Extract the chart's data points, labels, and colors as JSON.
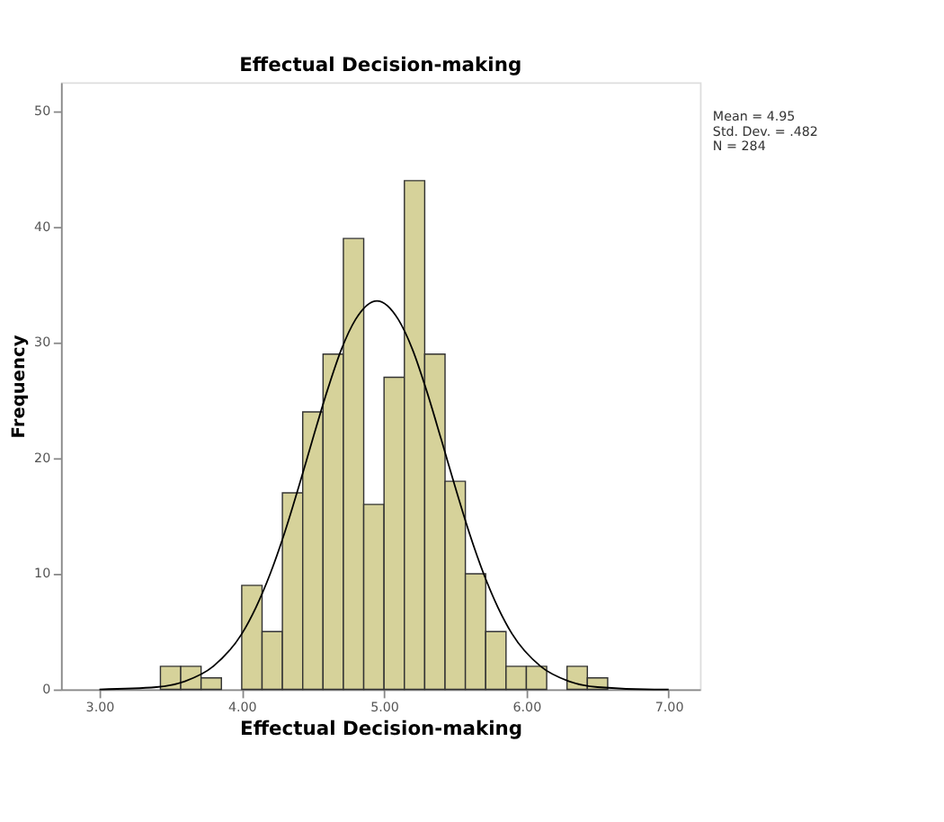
{
  "chart_data": {
    "type": "histogram",
    "title": "Effectual Decision-making",
    "xlabel": "Effectual Decision-making",
    "ylabel": "Frequency",
    "bins": [
      3.4286,
      3.5714,
      3.7143,
      3.8571,
      4.0,
      4.1429,
      4.2857,
      4.4286,
      4.5714,
      4.7143,
      4.8571,
      5.0,
      5.1429,
      5.2857,
      5.4286,
      5.5714,
      5.7143,
      5.8571,
      6.0,
      6.1429,
      6.2857,
      6.4286,
      6.5714
    ],
    "values": [
      2,
      2,
      1,
      0,
      9,
      5,
      17,
      24,
      29,
      39,
      16,
      27,
      44,
      29,
      18,
      10,
      5,
      2,
      2,
      0,
      2,
      1
    ],
    "color": "#d6d29a",
    "series": [
      {
        "type": "line",
        "color": "#000000",
        "x": [
          3.0,
          3.4,
          3.6,
          3.8,
          4.0,
          4.1,
          4.2,
          4.3,
          4.4,
          4.5,
          4.6,
          4.7,
          4.8,
          4.95,
          5.1,
          5.2,
          5.3,
          5.4,
          5.5,
          5.6,
          5.7,
          5.8,
          5.9,
          6.1,
          6.3,
          6.5,
          6.9,
          7.0
        ],
        "values": [
          0,
          0.2,
          0.7,
          2.0,
          4.8,
          7.1,
          10.0,
          13.5,
          17.5,
          21.7,
          25.8,
          29.4,
          32.0,
          33.6,
          32.0,
          29.4,
          25.8,
          21.7,
          17.5,
          13.5,
          10.0,
          7.1,
          4.8,
          2.0,
          0.7,
          0.2,
          0,
          0
        ]
      }
    ],
    "xlim": [
      2.73,
      7.22
    ],
    "xticks": [
      {
        "value": 3,
        "label": "3.00"
      },
      {
        "value": 4,
        "label": "4.00"
      },
      {
        "value": 5,
        "label": "5.00"
      },
      {
        "value": 6,
        "label": "6.00"
      },
      {
        "value": 7,
        "label": "7.00"
      }
    ],
    "ylim": [
      0,
      52.5
    ],
    "yticks": [
      0,
      10,
      20,
      30,
      40,
      50
    ],
    "grid": false,
    "annotations": [
      "Mean = 4.95",
      "Std. Dev. = .482",
      "N = 284"
    ]
  }
}
